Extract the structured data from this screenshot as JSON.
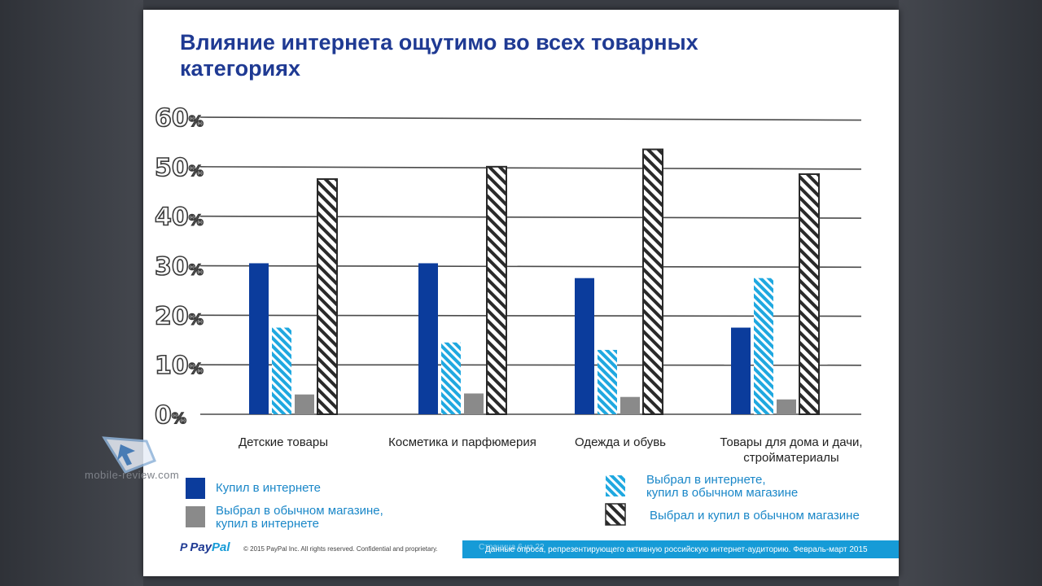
{
  "slide": {
    "title_line1": "Влияние интернета ощутимо во всех товарных",
    "title_line2": "категориях"
  },
  "chart_data": {
    "type": "bar",
    "categories": [
      "Детские товары",
      "Косметика и парфюмерия",
      "Одежда и обувь",
      "Товары для дома и дачи, стройматериалы"
    ],
    "category_lines": [
      [
        "Детские товары"
      ],
      [
        "Косметика и парфюмерия"
      ],
      [
        "Одежда и обувь"
      ],
      [
        "Товары для дома и дачи,",
        "стройматериалы"
      ]
    ],
    "series": [
      {
        "name": "Купил в интернете",
        "values": [
          30.5,
          30.5,
          27.5,
          17.5
        ],
        "color": "#0b3c9c",
        "style": "solid"
      },
      {
        "name": "Выбрал в интернете, купил в обычном магазине",
        "values": [
          17.5,
          14.5,
          13,
          27.5
        ],
        "color": "#1fa8e0",
        "style": "hatched"
      },
      {
        "name": "Выбрал в обычном магазине, купил в интернете",
        "values": [
          4,
          4.2,
          3.5,
          3
        ],
        "color": "#8a8a8a",
        "style": "solid"
      },
      {
        "name": "Выбрал и купил в обычном магазине",
        "values": [
          47.5,
          50,
          53.5,
          48.5
        ],
        "color": "#2a2a2a",
        "style": "hatched-outline"
      }
    ],
    "y_ticks": [
      "0%",
      "10%",
      "20%",
      "30%",
      "40%",
      "50%",
      "60%"
    ],
    "ylim": [
      0,
      60
    ],
    "grid": true
  },
  "legend": {
    "items": [
      {
        "line1": "Купил в интернете",
        "line2": ""
      },
      {
        "line1": "Выбрал в обычном магазине,",
        "line2": "купил в интернете"
      },
      {
        "line1": "Выбрал в интернете,",
        "line2": "купил в обычном магазине"
      },
      {
        "line1": "Выбрал и купил в обычном магазине",
        "line2": ""
      }
    ]
  },
  "footer": {
    "logo_pay": "Pay",
    "logo_pal": "Pal",
    "logo_mark": "P",
    "copyright": "© 2015 PayPal Inc. All rights reserved. Confidential and proprietary.",
    "page": "Страница 6 из 22",
    "source": "Данные опроса, репрезентирующего активную российскую интернет-аудиторию. Февраль-март 2015"
  },
  "watermark": {
    "text": "mobile-review.com"
  },
  "colors": {
    "title": "#1f3a93",
    "accent_blue": "#169bd7"
  }
}
